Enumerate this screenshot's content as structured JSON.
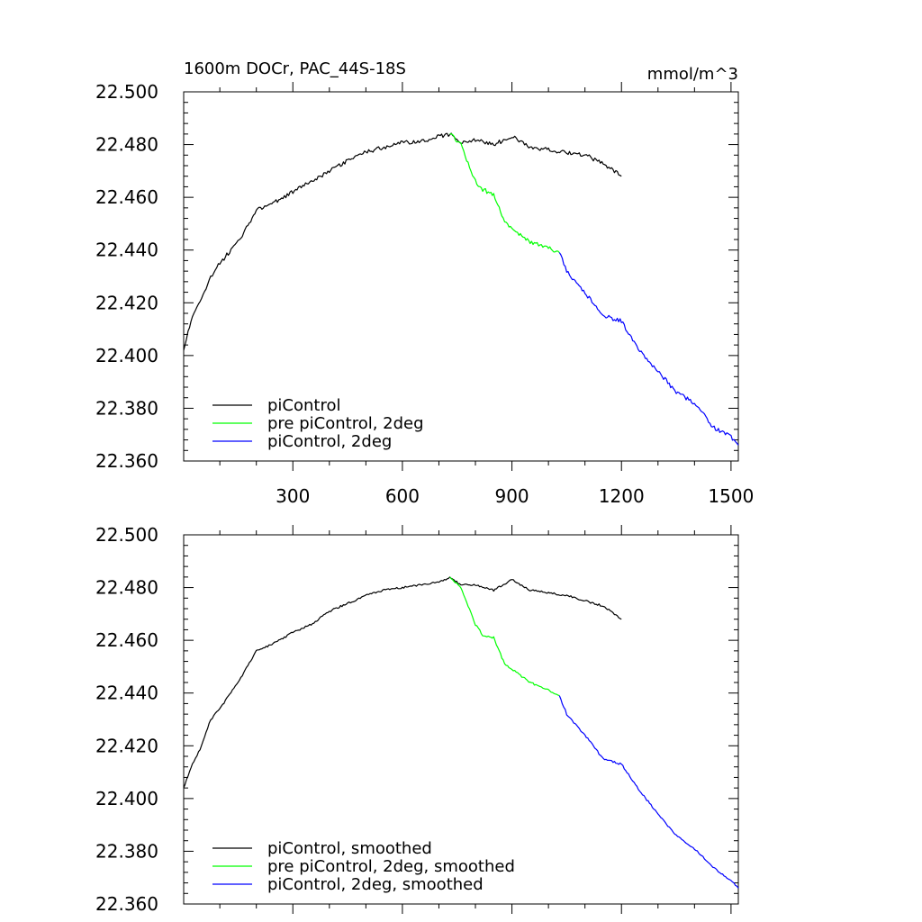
{
  "chart_data": [
    {
      "type": "line",
      "title": "1600m DOCr, PAC_44S-18S",
      "units": "mmol/m^3",
      "xlim": [
        1,
        1520
      ],
      "ylim": [
        22.36,
        22.5
      ],
      "xticks": [
        300,
        600,
        900,
        1200,
        1500
      ],
      "xtick_labels": [
        "300",
        "600",
        "900",
        "1200",
        "1500"
      ],
      "yticks": [
        22.36,
        22.38,
        22.4,
        22.42,
        22.44,
        22.46,
        22.48,
        22.5
      ],
      "ytick_labels": [
        "22.360",
        "22.380",
        "22.400",
        "22.420",
        "22.440",
        "22.460",
        "22.480",
        "22.500"
      ],
      "grid": false,
      "legend_position": "bottom-left",
      "series": [
        {
          "name": "piControl",
          "color": "#000000",
          "x": [
            1,
            25,
            50,
            75,
            100,
            150,
            200,
            250,
            300,
            350,
            400,
            450,
            500,
            550,
            600,
            650,
            700,
            730,
            760,
            800,
            850,
            900,
            950,
            1000,
            1050,
            1100,
            1150,
            1200
          ],
          "y": [
            22.402,
            22.415,
            22.422,
            22.43,
            22.435,
            22.443,
            22.455,
            22.458,
            22.462,
            22.466,
            22.47,
            22.474,
            22.477,
            22.479,
            22.481,
            22.481,
            22.483,
            22.484,
            22.481,
            22.482,
            22.48,
            22.483,
            22.479,
            22.478,
            22.477,
            22.476,
            22.473,
            22.468
          ]
        },
        {
          "name": "pre piControl, 2deg",
          "color": "#00ff00",
          "x": [
            730,
            760,
            780,
            800,
            820,
            850,
            880,
            900,
            950,
            1000,
            1030
          ],
          "y": [
            22.484,
            22.48,
            22.473,
            22.466,
            22.463,
            22.461,
            22.451,
            22.448,
            22.443,
            22.441,
            22.439
          ]
        },
        {
          "name": "piControl, 2deg",
          "color": "#0000ff",
          "x": [
            1030,
            1050,
            1100,
            1150,
            1200,
            1250,
            1300,
            1350,
            1400,
            1450,
            1500,
            1520
          ],
          "y": [
            22.439,
            22.432,
            22.424,
            22.415,
            22.413,
            22.402,
            22.394,
            22.386,
            22.382,
            22.373,
            22.369,
            22.366
          ]
        }
      ]
    },
    {
      "type": "line",
      "title": "",
      "xlim": [
        1,
        1520
      ],
      "ylim": [
        22.36,
        22.5
      ],
      "xticks": [
        300,
        600,
        900,
        1200,
        1500
      ],
      "yticks": [
        22.36,
        22.38,
        22.4,
        22.42,
        22.44,
        22.46,
        22.48,
        22.5
      ],
      "ytick_labels": [
        "22.360",
        "22.380",
        "22.400",
        "22.420",
        "22.440",
        "22.460",
        "22.480",
        "22.500"
      ],
      "grid": false,
      "legend_position": "bottom-left",
      "series": [
        {
          "name": "piControl, smoothed",
          "color": "#000000",
          "x": [
            1,
            25,
            50,
            75,
            100,
            150,
            200,
            250,
            300,
            350,
            400,
            450,
            500,
            550,
            600,
            650,
            700,
            730,
            760,
            800,
            850,
            900,
            950,
            1000,
            1050,
            1100,
            1150,
            1200
          ],
          "y": [
            22.404,
            22.413,
            22.42,
            22.43,
            22.434,
            22.444,
            22.456,
            22.459,
            22.463,
            22.466,
            22.471,
            22.474,
            22.477,
            22.479,
            22.48,
            22.481,
            22.482,
            22.484,
            22.481,
            22.481,
            22.479,
            22.483,
            22.479,
            22.478,
            22.477,
            22.475,
            22.473,
            22.468
          ]
        },
        {
          "name": "pre piControl, 2deg, smoothed",
          "color": "#00ff00",
          "x": [
            730,
            760,
            780,
            800,
            820,
            850,
            880,
            900,
            950,
            1000,
            1030
          ],
          "y": [
            22.484,
            22.48,
            22.473,
            22.466,
            22.462,
            22.461,
            22.451,
            22.449,
            22.444,
            22.441,
            22.439
          ]
        },
        {
          "name": "piControl, 2deg, smoothed",
          "color": "#0000ff",
          "x": [
            1030,
            1050,
            1100,
            1150,
            1200,
            1250,
            1300,
            1350,
            1400,
            1450,
            1500,
            1520
          ],
          "y": [
            22.439,
            22.432,
            22.424,
            22.415,
            22.413,
            22.403,
            22.394,
            22.386,
            22.381,
            22.374,
            22.369,
            22.366
          ]
        }
      ]
    }
  ]
}
